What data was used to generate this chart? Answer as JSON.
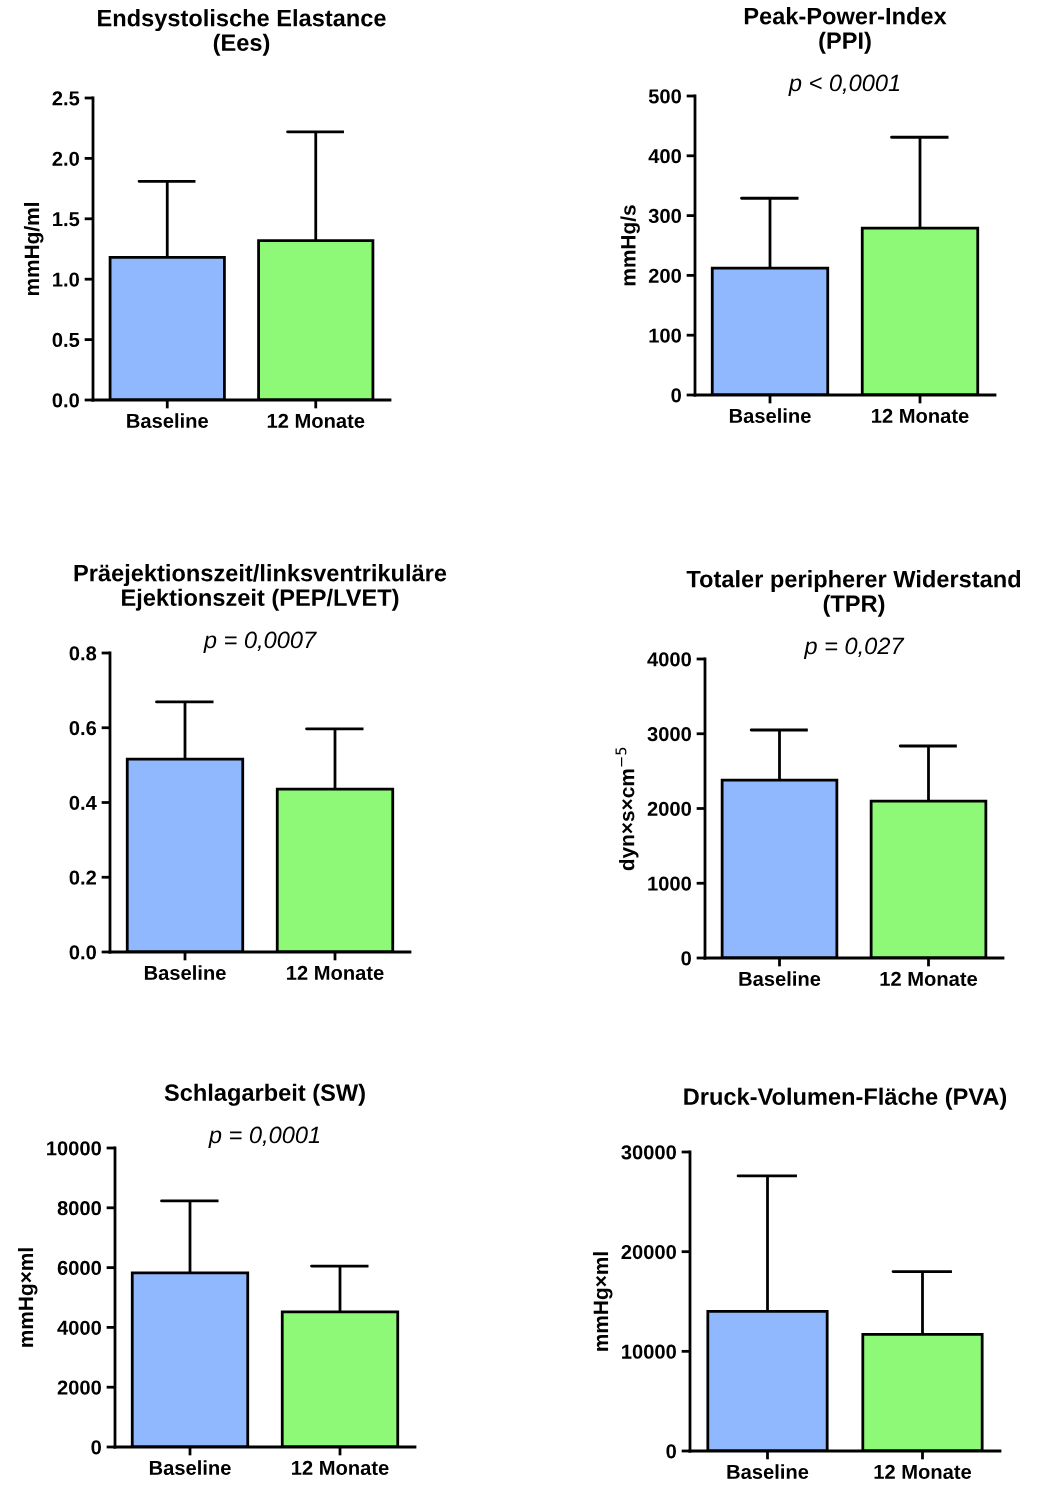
{
  "chart_data": [
    {
      "type": "bar",
      "title": "Endsystolische Elastance\n(Ees)",
      "ylabel": "mmHg/ml",
      "categories": [
        "Baseline",
        "12 Monate"
      ],
      "colors": [
        "#8fb8ff",
        "#8ef877"
      ],
      "values": [
        1.18,
        1.32
      ],
      "errors": [
        [
          1.18,
          1.81
        ],
        [
          1.32,
          2.22
        ]
      ],
      "ylim": [
        0,
        2.5
      ],
      "yticks": [
        {
          "value": 0,
          "label": "0.0"
        },
        {
          "value": 0.5,
          "label": "0.5"
        },
        {
          "value": 1,
          "label": "1.0"
        },
        {
          "value": 1.5,
          "label": "1.5"
        },
        {
          "value": 2,
          "label": "2.0"
        },
        {
          "value": 2.5,
          "label": "2.5"
        }
      ]
    },
    {
      "type": "bar",
      "title": "Peak-Power-Index\n(PPI)",
      "ylabel": "mmHg/s",
      "annotations": [
        "p < 0,0001"
      ],
      "categories": [
        "Baseline",
        "12 Monate"
      ],
      "colors": [
        "#8fb8ff",
        "#8ef877"
      ],
      "values": [
        212,
        279
      ],
      "errors": [
        [
          212,
          329
        ],
        [
          279,
          431
        ]
      ],
      "ylim": [
        0,
        500
      ],
      "yticks": [
        0,
        100,
        200,
        300,
        400,
        500
      ]
    },
    {
      "type": "bar",
      "title": "Präejektionszeit/linksventrikuläre\nEjektionszeit (PEP/LVET)",
      "annotations": [
        "p = 0,0007"
      ],
      "categories": [
        "Baseline",
        "12 Monate"
      ],
      "colors": [
        "#8fb8ff",
        "#8ef877"
      ],
      "values": [
        0.516,
        0.436
      ],
      "errors": [
        [
          0.516,
          0.669
        ],
        [
          0.436,
          0.597
        ]
      ],
      "ylim": [
        0,
        0.8
      ],
      "yticks": [
        {
          "value": 0,
          "label": "0.0"
        },
        0.2,
        0.4,
        0.6,
        0.8
      ]
    },
    {
      "type": "bar",
      "title": "Totaler peripherer Widerstand\n(TPR)",
      "ylabel": "dyn×s×cm$^{−5}$",
      "annotations": [
        "p = 0,027"
      ],
      "categories": [
        "Baseline",
        "12 Monate"
      ],
      "colors": [
        "#8fb8ff",
        "#8ef877"
      ],
      "values": [
        2380,
        2100
      ],
      "errors": [
        [
          2380,
          3050
        ],
        [
          2100,
          2836
        ]
      ],
      "ylim": [
        0,
        4000
      ],
      "yticks": [
        0,
        1000,
        2000,
        3000,
        4000
      ]
    },
    {
      "type": "bar",
      "title": "Schlagarbeit (SW)",
      "ylabel": "mmHg×ml",
      "annotations": [
        "p = 0,0001"
      ],
      "categories": [
        "Baseline",
        "12 Monate"
      ],
      "colors": [
        "#8fb8ff",
        "#8ef877"
      ],
      "values": [
        5820,
        4520
      ],
      "errors": [
        [
          5820,
          8230
        ],
        [
          4520,
          6050
        ]
      ],
      "ylim": [
        0,
        10000
      ],
      "yticks": [
        0,
        2000,
        4000,
        6000,
        8000,
        10000
      ]
    },
    {
      "type": "bar",
      "title": "Druck-Volumen-Fläche (PVA)",
      "ylabel": "mmHg×ml",
      "categories": [
        "Baseline",
        "12 Monate"
      ],
      "colors": [
        "#8fb8ff",
        "#8ef877"
      ],
      "values": [
        14000,
        11700
      ],
      "errors": [
        [
          14000,
          27600
        ],
        [
          11700,
          18000
        ]
      ],
      "ylim": [
        0,
        30000
      ],
      "yticks": [
        0,
        10000,
        20000,
        30000
      ]
    }
  ]
}
